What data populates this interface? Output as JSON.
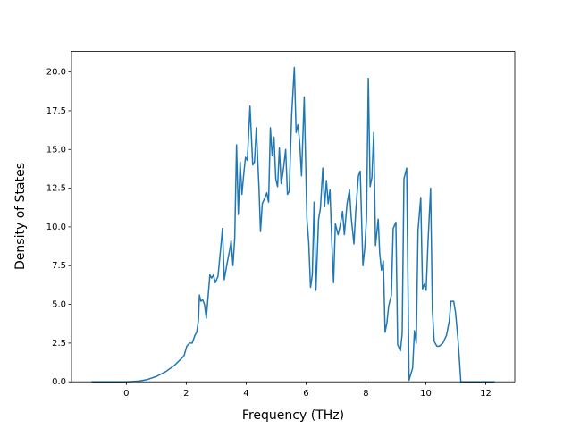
{
  "chart_data": {
    "type": "line",
    "xlabel": "Frequency (THz)",
    "ylabel": "Density of States",
    "x": [
      -1.16,
      -0.48,
      0,
      0.42,
      0.71,
      1.01,
      1.31,
      1.6,
      1.84,
      1.93,
      2.02,
      2.11,
      2.2,
      2.29,
      2.35,
      2.41,
      2.44,
      2.49,
      2.55,
      2.61,
      2.67,
      2.73,
      2.79,
      2.85,
      2.91,
      2.97,
      3.06,
      3.15,
      3.21,
      3.27,
      3.36,
      3.45,
      3.5,
      3.56,
      3.62,
      3.68,
      3.74,
      3.8,
      3.86,
      3.92,
      3.98,
      4.04,
      4.13,
      4.22,
      4.28,
      4.34,
      4.43,
      4.48,
      4.54,
      4.63,
      4.69,
      4.75,
      4.81,
      4.87,
      4.93,
      4.99,
      5.05,
      5.11,
      5.17,
      5.23,
      5.32,
      5.38,
      5.44,
      5.52,
      5.61,
      5.67,
      5.73,
      5.79,
      5.85,
      5.94,
      6.03,
      6.09,
      6.15,
      6.21,
      6.27,
      6.33,
      6.42,
      6.48,
      6.56,
      6.62,
      6.68,
      6.74,
      6.8,
      6.86,
      6.92,
      6.98,
      7.07,
      7.13,
      7.22,
      7.28,
      7.37,
      7.45,
      7.51,
      7.6,
      7.66,
      7.75,
      7.81,
      7.9,
      7.96,
      8.02,
      8.08,
      8.14,
      8.2,
      8.26,
      8.32,
      8.41,
      8.46,
      8.52,
      8.58,
      8.64,
      8.7,
      8.76,
      8.85,
      8.91,
      9.0,
      9.06,
      9.15,
      9.21,
      9.27,
      9.36,
      9.44,
      9.56,
      9.62,
      9.68,
      9.74,
      9.83,
      9.89,
      9.95,
      10.01,
      10.07,
      10.16,
      10.22,
      10.28,
      10.37,
      10.45,
      10.57,
      10.69,
      10.78,
      10.84,
      10.93,
      10.99,
      11.08,
      11.17,
      11.26,
      12.3
    ],
    "series": [
      {
        "color": "#1f77b4",
        "values": [
          0,
          0,
          0,
          0.05,
          0.15,
          0.35,
          0.65,
          1.05,
          1.5,
          1.7,
          2.3,
          2.5,
          2.5,
          3.0,
          3.2,
          4.0,
          5.6,
          5.2,
          5.3,
          5.0,
          4.1,
          5.5,
          6.9,
          6.7,
          6.9,
          6.4,
          6.8,
          8.6,
          9.9,
          6.6,
          7.6,
          8.5,
          9.1,
          7.5,
          9.3,
          15.3,
          10.8,
          14.2,
          12.1,
          13.4,
          14.5,
          14.3,
          17.8,
          14.0,
          14.2,
          16.4,
          12.5,
          9.7,
          11.5,
          11.9,
          12.2,
          11.6,
          16.4,
          14.6,
          15.8,
          13.1,
          12.6,
          15.1,
          12.8,
          13.5,
          15.0,
          12.1,
          12.3,
          17.2,
          20.3,
          16.1,
          16.6,
          15.4,
          13.3,
          18.4,
          10.5,
          9.0,
          6.1,
          6.9,
          11.6,
          5.9,
          10.5,
          11.2,
          13.8,
          11.3,
          13.0,
          11.5,
          12.4,
          9.1,
          6.4,
          10.2,
          9.5,
          10.0,
          11.0,
          9.5,
          11.5,
          12.4,
          10.6,
          8.9,
          11.0,
          13.3,
          13.6,
          7.5,
          8.6,
          10.6,
          19.6,
          12.6,
          13.2,
          16.1,
          8.8,
          10.5,
          8.3,
          7.2,
          7.8,
          3.2,
          3.8,
          4.9,
          5.6,
          9.9,
          10.3,
          2.4,
          2.0,
          3.1,
          13.1,
          13.8,
          0.1,
          0.9,
          3.3,
          2.5,
          9.8,
          11.9,
          6.0,
          6.3,
          5.9,
          8.9,
          12.5,
          4.6,
          2.6,
          2.3,
          2.3,
          2.5,
          3.0,
          3.9,
          5.2,
          5.2,
          4.5,
          2.6,
          0,
          0,
          0
        ]
      }
    ],
    "xlim": [
      -1.83,
      12.97
    ],
    "ylim": [
      0,
      21.33
    ],
    "xticks": [
      0,
      2,
      4,
      6,
      8,
      10,
      12
    ],
    "yticks": [
      {
        "value": 0,
        "label": "0.0"
      },
      {
        "value": 2.5,
        "label": "2.5"
      },
      {
        "value": 5,
        "label": "5.0"
      },
      {
        "value": 7.5,
        "label": "7.5"
      },
      {
        "value": 10,
        "label": "10.0"
      },
      {
        "value": 12.5,
        "label": "12.5"
      },
      {
        "value": 15,
        "label": "15.0"
      },
      {
        "value": 17.5,
        "label": "17.5"
      },
      {
        "value": 20,
        "label": "20.0"
      }
    ]
  }
}
